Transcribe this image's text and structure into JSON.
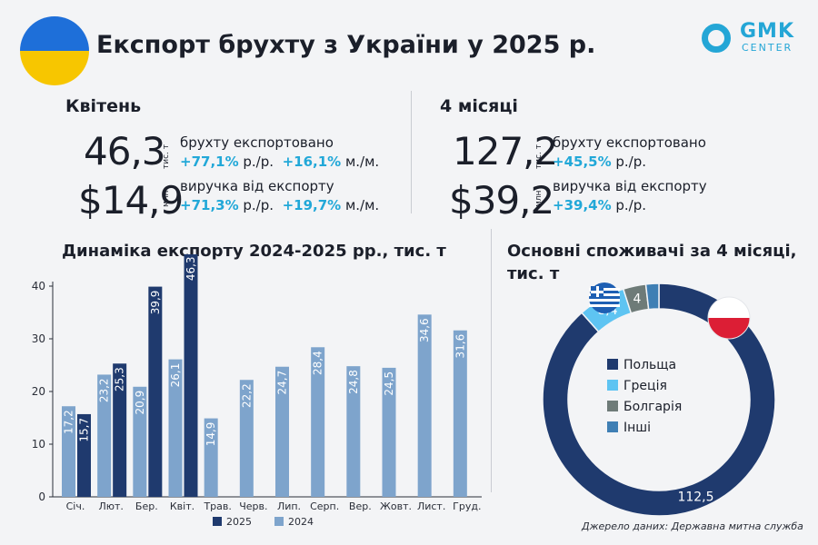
{
  "header": {
    "title": "Експорт брухту з України у 2025 р.",
    "logo_top": "GMK",
    "logo_bottom": "CENTER"
  },
  "april": {
    "heading": "Квітень",
    "volume_value": "46,3",
    "volume_unit": "тис. т",
    "volume_label": "брухту експортовано",
    "volume_yoy": "+77,1%",
    "volume_yoy_suffix": " р./р.",
    "volume_mom": "+16,1%",
    "volume_mom_suffix": " м./м.",
    "revenue_value": "$14,9",
    "revenue_unit": "млн",
    "revenue_label": "виручка від експорту",
    "revenue_yoy": "+71,3%",
    "revenue_yoy_suffix": " р./р.",
    "revenue_mom": "+19,7%",
    "revenue_mom_suffix": " м./м."
  },
  "four_months": {
    "heading": "4 місяці",
    "volume_value": "127,2",
    "volume_unit": "тис. т",
    "volume_label": "брухту експортовано",
    "volume_yoy": "+45,5%",
    "volume_yoy_suffix": " р./р.",
    "revenue_value": "$39,2",
    "revenue_unit": "млн",
    "revenue_label": "виручка від експорту",
    "revenue_yoy": "+39,4%",
    "revenue_yoy_suffix": " р./р."
  },
  "colors": {
    "series_2025": "#1f3a6e",
    "series_2024": "#7ea4cc",
    "poland": "#1f3a6e",
    "greece": "#5ec4f2",
    "bulgaria": "#6e7b78",
    "other": "#3f7fb4",
    "accent": "#22a8d8"
  },
  "chart_data": [
    {
      "type": "bar",
      "title": "Динаміка експорту 2024-2025 рр., тис. т",
      "categories": [
        "Січ.",
        "Лют.",
        "Бер.",
        "Квіт.",
        "Трав.",
        "Черв.",
        "Лип.",
        "Серп.",
        "Вер.",
        "Жовт.",
        "Лист.",
        "Груд."
      ],
      "series": [
        {
          "name": "2024",
          "values": [
            17.2,
            23.2,
            20.9,
            26.1,
            14.9,
            22.2,
            24.7,
            28.4,
            24.8,
            24.5,
            34.6,
            31.6
          ],
          "labels": [
            "17,2",
            "23,2",
            "20,9",
            "26,1",
            "14,9",
            "22,2",
            "24,7",
            "28,4",
            "24,8",
            "24,5",
            "34,6",
            "31,6"
          ]
        },
        {
          "name": "2025",
          "values": [
            15.7,
            25.3,
            39.9,
            46.3,
            null,
            null,
            null,
            null,
            null,
            null,
            null,
            null
          ],
          "labels": [
            "15,7",
            "25,3",
            "39,9",
            "46,3",
            "",
            "",
            "",
            "",
            "",
            "",
            "",
            ""
          ]
        }
      ],
      "yticks": [
        "0",
        "10",
        "20",
        "30",
        "40"
      ],
      "ylim": [
        0,
        46.3
      ],
      "legend_position": "bottom",
      "grid": false
    },
    {
      "type": "pie",
      "title": "Основні споживачі за 4 місяці,",
      "subtitle": "тис. т",
      "slices": [
        {
          "name": "Польща",
          "value": 112.5,
          "label": "112,5"
        },
        {
          "name": "Греція",
          "value": 8.4,
          "label": "8,4"
        },
        {
          "name": "Болгарія",
          "value": 4,
          "label": "4"
        },
        {
          "name": "Інші",
          "value": 2.3,
          "label": ""
        }
      ],
      "legend_position": "center"
    }
  ],
  "source": "Джерело даних: Державна митна служба"
}
